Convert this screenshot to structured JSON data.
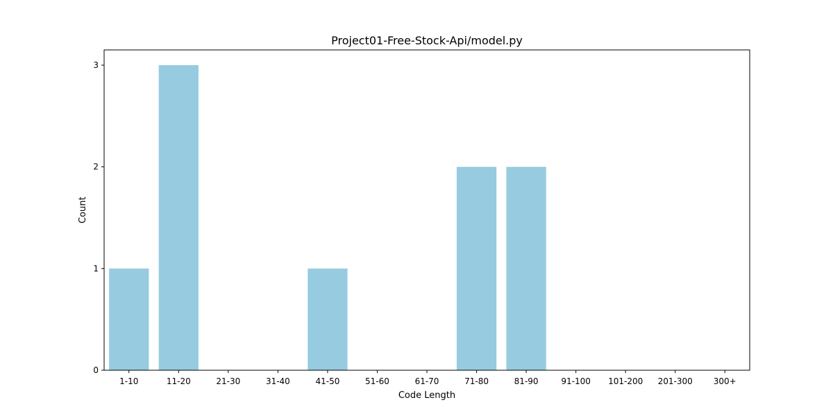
{
  "chart_data": {
    "type": "bar",
    "title": "Project01-Free-Stock-Api/model.py",
    "xlabel": "Code Length",
    "ylabel": "Count",
    "categories": [
      "1-10",
      "11-20",
      "21-30",
      "31-40",
      "41-50",
      "51-60",
      "61-70",
      "71-80",
      "81-90",
      "91-100",
      "101-200",
      "201-300",
      "300+"
    ],
    "values": [
      1,
      3,
      0,
      0,
      1,
      0,
      0,
      2,
      2,
      0,
      0,
      0,
      0
    ],
    "ylim": [
      0,
      3.15
    ],
    "yticks": [
      "0",
      "1",
      "2",
      "3"
    ],
    "bar_color": "#96cbe0",
    "grid": false,
    "legend": "none"
  }
}
